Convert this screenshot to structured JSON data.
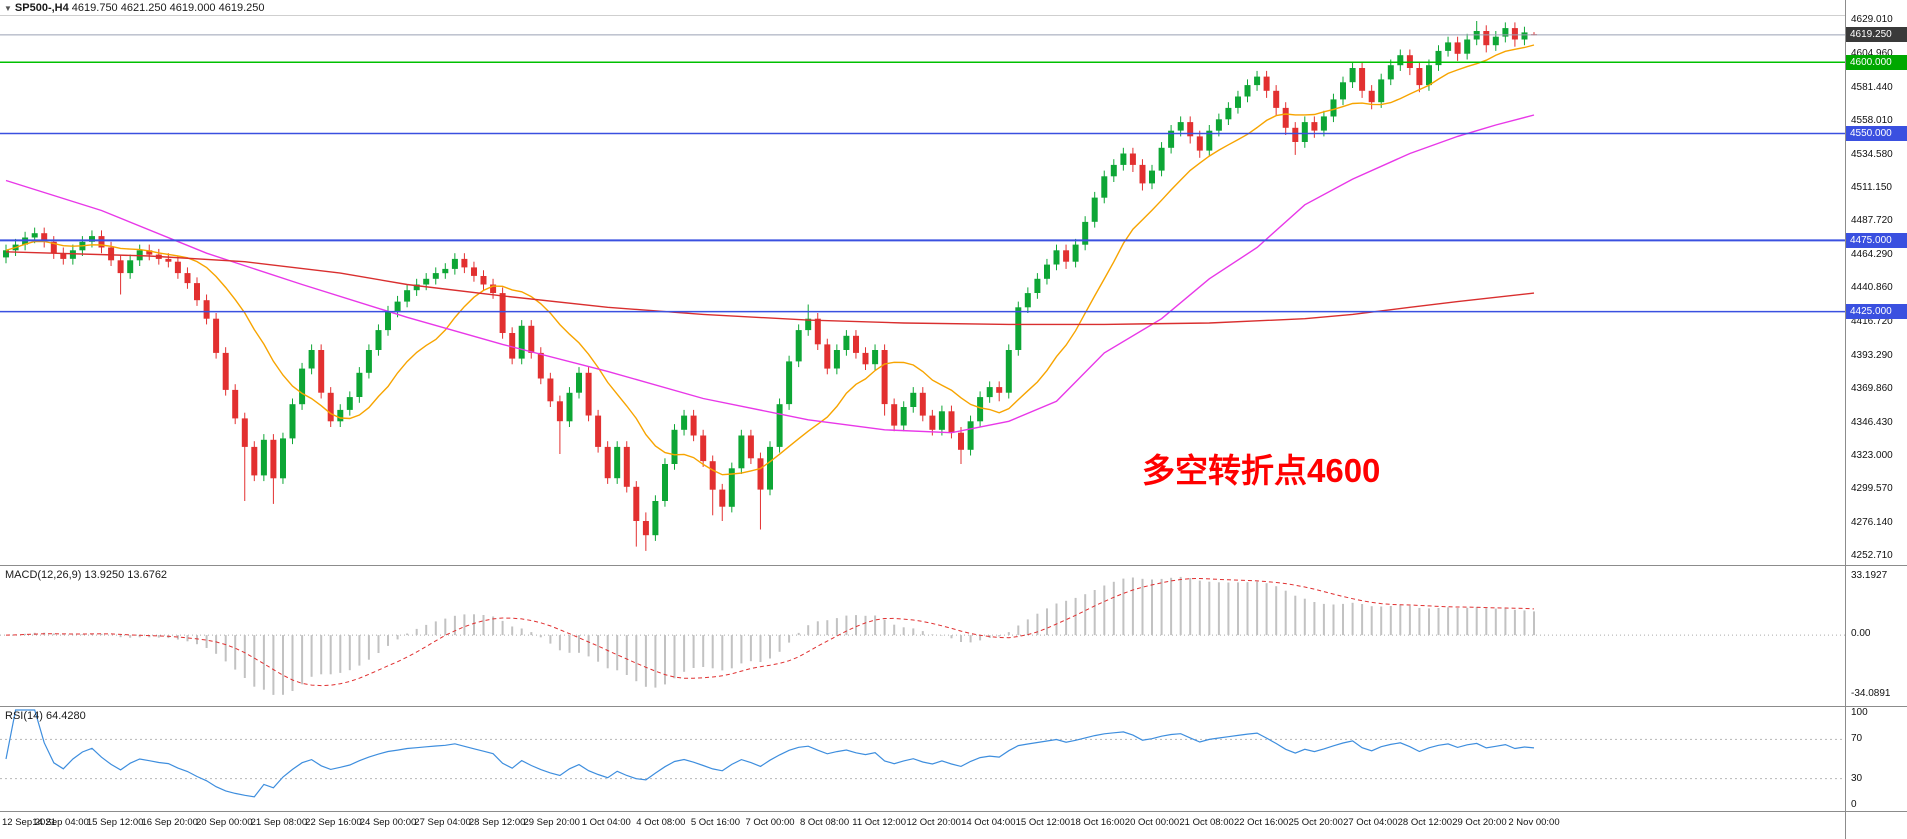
{
  "window": {
    "marker": "▼",
    "symbol_period": "SP500-,H4",
    "ohlc_text": "4619.750 4621.250 4619.000 4619.250"
  },
  "annotation": {
    "text": "多空转折点4600",
    "color": "#FF0000"
  },
  "colors": {
    "background": "#FFFFFF",
    "panel_border": "#8C8C8C",
    "candle_up": "#0DA635",
    "candle_down": "#E23030",
    "ma_fast": "#F7A400",
    "ma_mid": "#E838E8",
    "ma_slow": "#D92F2F",
    "text": "#1A1A1A"
  },
  "price_axis": {
    "ticks": [
      {
        "text": "4629.010",
        "value": 4629.01
      },
      {
        "text": "4604.960",
        "value": 4604.96
      },
      {
        "text": "4581.440",
        "value": 4581.44
      },
      {
        "text": "4558.010",
        "value": 4558.01
      },
      {
        "text": "4534.580",
        "value": 4534.58
      },
      {
        "text": "4511.150",
        "value": 4511.15
      },
      {
        "text": "4487.720",
        "value": 4487.72
      },
      {
        "text": "4464.290",
        "value": 4464.29
      },
      {
        "text": "4440.860",
        "value": 4440.86
      },
      {
        "text": "4416.720",
        "value": 4416.72
      },
      {
        "text": "4393.290",
        "value": 4393.29
      },
      {
        "text": "4369.860",
        "value": 4369.86
      },
      {
        "text": "4346.430",
        "value": 4346.43
      },
      {
        "text": "4323.000",
        "value": 4323.0
      },
      {
        "text": "4299.570",
        "value": 4299.57
      },
      {
        "text": "4276.140",
        "value": 4276.14
      },
      {
        "text": "4252.710",
        "value": 4252.71
      }
    ]
  },
  "levels": [
    {
      "label": "4600.000",
      "value": 4600,
      "color": "#00C000",
      "badge": "#00A800",
      "width": 1.5
    },
    {
      "label": "4550.000",
      "value": 4550,
      "color": "#3A50E0",
      "badge": "#3A50E0",
      "width": 1.5
    },
    {
      "label": "4475.000",
      "value": 4475,
      "color": "#3A50E0",
      "badge": "#3A50E0",
      "width": 2
    },
    {
      "label": "4425.000",
      "value": 4425,
      "color": "#3A50E0",
      "badge": "#3A50E0",
      "width": 1.5
    }
  ],
  "price_line": {
    "label": "4619.250",
    "value": 4619.25,
    "line_color": "#9AA0B4",
    "badge_color": "#3A3A3A"
  },
  "macd": {
    "label": "MACD(12,26,9) 13.9250 13.6762",
    "fast": 12,
    "slow": 26,
    "signal": 9,
    "histogram_color": "#C2C2C2",
    "signal_color": "#E03030",
    "scale_range": [
      -37,
      36
    ],
    "axis": [
      {
        "text": "33.1927",
        "value": 33.1927
      },
      {
        "text": "0.00",
        "value": 0
      },
      {
        "text": "-34.0891",
        "value": -34.0891
      }
    ]
  },
  "rsi": {
    "label": "RSI(14) 64.4280",
    "period": 14,
    "color": "#3E8EDE",
    "levels": [
      70,
      30
    ],
    "range": [
      0,
      100
    ],
    "axis": [
      {
        "text": "100",
        "value": 100
      },
      {
        "text": "70",
        "value": 70
      },
      {
        "text": "30",
        "value": 30
      },
      {
        "text": "0",
        "value": 0
      }
    ]
  },
  "time_axis": {
    "labels": [
      "12 Sep 2021",
      "14 Sep 04:00",
      "15 Sep 12:00",
      "16 Sep 20:00",
      "20 Sep 00:00",
      "21 Sep 08:00",
      "22 Sep 16:00",
      "24 Sep 00:00",
      "27 Sep 04:00",
      "28 Sep 12:00",
      "29 Sep 20:00",
      "1 Oct 04:00",
      "4 Oct 08:00",
      "5 Oct 16:00",
      "7 Oct 00:00",
      "8 Oct 08:00",
      "11 Oct 12:00",
      "12 Oct 20:00",
      "14 Oct 04:00",
      "15 Oct 12:00",
      "18 Oct 16:00",
      "20 Oct 00:00",
      "21 Oct 08:00",
      "22 Oct 16:00",
      "25 Oct 20:00",
      "27 Oct 04:00",
      "28 Oct 12:00",
      "29 Oct 20:00",
      "2 Nov 00:00"
    ]
  },
  "chart_data": {
    "type": "candlestick",
    "symbol": "SP500-",
    "timeframe": "H4",
    "title": "SP500- H4 candlestick chart with MACD(12,26,9) and RSI(14)",
    "price_axis_range": [
      4252.71,
      4629.01
    ],
    "last_bar": {
      "open": 4619.75,
      "high": 4621.25,
      "low": 4619.0,
      "close": 4619.25
    },
    "candles": [
      [
        4463,
        4472,
        4459,
        4468
      ],
      [
        4468,
        4476,
        4464,
        4472
      ],
      [
        4472,
        4481,
        4468,
        4477
      ],
      [
        4477,
        4484,
        4473,
        4480
      ],
      [
        4480,
        4484,
        4470,
        4474
      ],
      [
        4474,
        4478,
        4462,
        4466
      ],
      [
        4466,
        4470,
        4458,
        4462
      ],
      [
        4462,
        4472,
        4458,
        4468
      ],
      [
        4468,
        4478,
        4464,
        4474
      ],
      [
        4474,
        4482,
        4470,
        4478
      ],
      [
        4478,
        4482,
        4466,
        4470
      ],
      [
        4470,
        4474,
        4457,
        4461
      ],
      [
        4461,
        4465,
        4437,
        4452
      ],
      [
        4452,
        4465,
        4448,
        4461
      ],
      [
        4461,
        4472,
        4457,
        4468
      ],
      [
        4468,
        4472,
        4461,
        4465
      ],
      [
        4465,
        4469,
        4458,
        4462
      ],
      [
        4462,
        4466,
        4456,
        4460
      ],
      [
        4460,
        4464,
        4448,
        4452
      ],
      [
        4452,
        4456,
        4441,
        4445
      ],
      [
        4445,
        4449,
        4429,
        4433
      ],
      [
        4433,
        4437,
        4416,
        4420
      ],
      [
        4420,
        4424,
        4392,
        4396
      ],
      [
        4396,
        4400,
        4366,
        4370
      ],
      [
        4370,
        4374,
        4346,
        4350
      ],
      [
        4350,
        4354,
        4292,
        4330
      ],
      [
        4330,
        4334,
        4306,
        4310
      ],
      [
        4310,
        4339,
        4306,
        4335
      ],
      [
        4335,
        4339,
        4290,
        4308
      ],
      [
        4308,
        4340,
        4304,
        4336
      ],
      [
        4336,
        4364,
        4332,
        4360
      ],
      [
        4360,
        4389,
        4356,
        4385
      ],
      [
        4385,
        4402,
        4381,
        4398
      ],
      [
        4398,
        4402,
        4364,
        4368
      ],
      [
        4368,
        4372,
        4344,
        4348
      ],
      [
        4348,
        4360,
        4344,
        4356
      ],
      [
        4356,
        4369,
        4352,
        4365
      ],
      [
        4365,
        4386,
        4361,
        4382
      ],
      [
        4382,
        4402,
        4378,
        4398
      ],
      [
        4398,
        4416,
        4394,
        4412
      ],
      [
        4412,
        4429,
        4408,
        4425
      ],
      [
        4425,
        4436,
        4421,
        4432
      ],
      [
        4432,
        4444,
        4428,
        4440
      ],
      [
        4440,
        4448,
        4436,
        4444
      ],
      [
        4444,
        4452,
        4440,
        4448
      ],
      [
        4448,
        4456,
        4444,
        4452
      ],
      [
        4452,
        4459,
        4448,
        4455
      ],
      [
        4455,
        4466,
        4451,
        4462
      ],
      [
        4462,
        4466,
        4452,
        4456
      ],
      [
        4456,
        4460,
        4446,
        4450
      ],
      [
        4450,
        4454,
        4440,
        4444
      ],
      [
        4444,
        4448,
        4434,
        4438
      ],
      [
        4438,
        4442,
        4406,
        4410
      ],
      [
        4410,
        4414,
        4388,
        4392
      ],
      [
        4392,
        4419,
        4388,
        4415
      ],
      [
        4415,
        4419,
        4392,
        4396
      ],
      [
        4396,
        4400,
        4374,
        4378
      ],
      [
        4378,
        4382,
        4358,
        4362
      ],
      [
        4362,
        4366,
        4325,
        4348
      ],
      [
        4348,
        4372,
        4344,
        4368
      ],
      [
        4368,
        4386,
        4364,
        4382
      ],
      [
        4382,
        4386,
        4348,
        4352
      ],
      [
        4352,
        4356,
        4326,
        4330
      ],
      [
        4330,
        4334,
        4304,
        4308
      ],
      [
        4308,
        4334,
        4304,
        4330
      ],
      [
        4330,
        4334,
        4298,
        4302
      ],
      [
        4302,
        4306,
        4260,
        4278
      ],
      [
        4278,
        4284,
        4257,
        4268
      ],
      [
        4268,
        4296,
        4264,
        4292
      ],
      [
        4292,
        4322,
        4288,
        4318
      ],
      [
        4318,
        4346,
        4314,
        4342
      ],
      [
        4342,
        4356,
        4338,
        4352
      ],
      [
        4352,
        4356,
        4334,
        4338
      ],
      [
        4338,
        4342,
        4316,
        4320
      ],
      [
        4320,
        4324,
        4282,
        4300
      ],
      [
        4300,
        4304,
        4278,
        4288
      ],
      [
        4288,
        4319,
        4284,
        4315
      ],
      [
        4315,
        4342,
        4311,
        4338
      ],
      [
        4338,
        4342,
        4318,
        4322
      ],
      [
        4322,
        4326,
        4272,
        4300
      ],
      [
        4300,
        4334,
        4296,
        4330
      ],
      [
        4330,
        4364,
        4326,
        4360
      ],
      [
        4360,
        4394,
        4356,
        4390
      ],
      [
        4390,
        4416,
        4386,
        4412
      ],
      [
        4412,
        4430,
        4408,
        4420
      ],
      [
        4420,
        4424,
        4398,
        4402
      ],
      [
        4402,
        4406,
        4381,
        4385
      ],
      [
        4385,
        4402,
        4381,
        4398
      ],
      [
        4398,
        4412,
        4394,
        4408
      ],
      [
        4408,
        4412,
        4392,
        4396
      ],
      [
        4396,
        4400,
        4384,
        4388
      ],
      [
        4388,
        4402,
        4384,
        4398
      ],
      [
        4398,
        4402,
        4352,
        4360
      ],
      [
        4360,
        4364,
        4341,
        4345
      ],
      [
        4345,
        4362,
        4341,
        4358
      ],
      [
        4358,
        4372,
        4354,
        4368
      ],
      [
        4368,
        4372,
        4348,
        4352
      ],
      [
        4352,
        4356,
        4338,
        4342
      ],
      [
        4342,
        4359,
        4338,
        4355
      ],
      [
        4355,
        4359,
        4336,
        4340
      ],
      [
        4340,
        4344,
        4318,
        4328
      ],
      [
        4328,
        4352,
        4324,
        4348
      ],
      [
        4348,
        4369,
        4344,
        4365
      ],
      [
        4365,
        4376,
        4361,
        4372
      ],
      [
        4372,
        4376,
        4362,
        4368
      ],
      [
        4368,
        4402,
        4364,
        4398
      ],
      [
        4398,
        4432,
        4394,
        4428
      ],
      [
        4428,
        4442,
        4424,
        4438
      ],
      [
        4438,
        4452,
        4434,
        4448
      ],
      [
        4448,
        4462,
        4444,
        4458
      ],
      [
        4458,
        4472,
        4454,
        4468
      ],
      [
        4468,
        4472,
        4455,
        4460
      ],
      [
        4460,
        4476,
        4456,
        4472
      ],
      [
        4472,
        4492,
        4468,
        4488
      ],
      [
        4488,
        4509,
        4484,
        4505
      ],
      [
        4505,
        4524,
        4501,
        4520
      ],
      [
        4520,
        4532,
        4516,
        4528
      ],
      [
        4528,
        4540,
        4524,
        4536
      ],
      [
        4536,
        4540,
        4523,
        4528
      ],
      [
        4528,
        4532,
        4510,
        4515
      ],
      [
        4515,
        4528,
        4511,
        4524
      ],
      [
        4524,
        4544,
        4520,
        4540
      ],
      [
        4540,
        4556,
        4536,
        4552
      ],
      [
        4552,
        4562,
        4548,
        4558
      ],
      [
        4558,
        4562,
        4543,
        4548
      ],
      [
        4548,
        4552,
        4533,
        4538
      ],
      [
        4538,
        4556,
        4534,
        4552
      ],
      [
        4552,
        4564,
        4548,
        4560
      ],
      [
        4560,
        4572,
        4556,
        4568
      ],
      [
        4568,
        4580,
        4564,
        4576
      ],
      [
        4576,
        4588,
        4572,
        4584
      ],
      [
        4584,
        4594,
        4580,
        4590
      ],
      [
        4590,
        4594,
        4575,
        4580
      ],
      [
        4580,
        4584,
        4563,
        4568
      ],
      [
        4568,
        4572,
        4549,
        4554
      ],
      [
        4554,
        4558,
        4535,
        4544
      ],
      [
        4544,
        4562,
        4540,
        4558
      ],
      [
        4558,
        4562,
        4547,
        4552
      ],
      [
        4552,
        4566,
        4548,
        4562
      ],
      [
        4562,
        4578,
        4558,
        4574
      ],
      [
        4574,
        4590,
        4570,
        4586
      ],
      [
        4586,
        4600,
        4582,
        4596
      ],
      [
        4596,
        4600,
        4575,
        4580
      ],
      [
        4580,
        4584,
        4567,
        4572
      ],
      [
        4572,
        4592,
        4568,
        4588
      ],
      [
        4588,
        4602,
        4584,
        4598
      ],
      [
        4598,
        4609,
        4594,
        4605
      ],
      [
        4605,
        4609,
        4591,
        4596
      ],
      [
        4596,
        4600,
        4579,
        4584
      ],
      [
        4584,
        4602,
        4580,
        4598
      ],
      [
        4598,
        4612,
        4594,
        4608
      ],
      [
        4608,
        4618,
        4604,
        4614
      ],
      [
        4614,
        4618,
        4601,
        4606
      ],
      [
        4606,
        4620,
        4602,
        4616
      ],
      [
        4616,
        4629,
        4612,
        4622
      ],
      [
        4622,
        4626,
        4607,
        4612
      ],
      [
        4612,
        4622,
        4608,
        4618
      ],
      [
        4618,
        4628,
        4614,
        4624
      ],
      [
        4624,
        4628,
        4611,
        4616
      ],
      [
        4616,
        4625,
        4612,
        4621
      ],
      [
        4619.75,
        4621.25,
        4619,
        4619.25
      ]
    ],
    "overlays": [
      {
        "name": "ma-fast",
        "type": "sma",
        "period": 13,
        "color": "#F7A400"
      },
      {
        "name": "ma-mid",
        "type": "polyline",
        "color": "#E838E8",
        "points": [
          [
            0,
            4517
          ],
          [
            10,
            4496
          ],
          [
            21,
            4466
          ],
          [
            31,
            4444
          ],
          [
            42,
            4421
          ],
          [
            52,
            4402
          ],
          [
            63,
            4383
          ],
          [
            73,
            4364
          ],
          [
            84,
            4349
          ],
          [
            92,
            4342
          ],
          [
            99,
            4340
          ],
          [
            105,
            4348
          ],
          [
            110,
            4362
          ],
          [
            115,
            4396
          ],
          [
            121,
            4420
          ],
          [
            126,
            4448
          ],
          [
            131,
            4470
          ],
          [
            136,
            4500
          ],
          [
            141,
            4518
          ],
          [
            147,
            4536
          ],
          [
            152,
            4548
          ],
          [
            156,
            4556
          ],
          [
            160,
            4563
          ]
        ]
      },
      {
        "name": "ma-slow",
        "type": "polyline",
        "color": "#D92F2F",
        "points": [
          [
            0,
            4467
          ],
          [
            15,
            4464
          ],
          [
            25,
            4460
          ],
          [
            35,
            4452
          ],
          [
            42,
            4444
          ],
          [
            52,
            4436
          ],
          [
            63,
            4428
          ],
          [
            73,
            4423
          ],
          [
            84,
            4419
          ],
          [
            94,
            4417
          ],
          [
            105,
            4416
          ],
          [
            115,
            4416
          ],
          [
            126,
            4417
          ],
          [
            136,
            4420
          ],
          [
            141,
            4423
          ],
          [
            147,
            4428
          ],
          [
            152,
            4432
          ],
          [
            160,
            4438
          ]
        ]
      }
    ]
  }
}
